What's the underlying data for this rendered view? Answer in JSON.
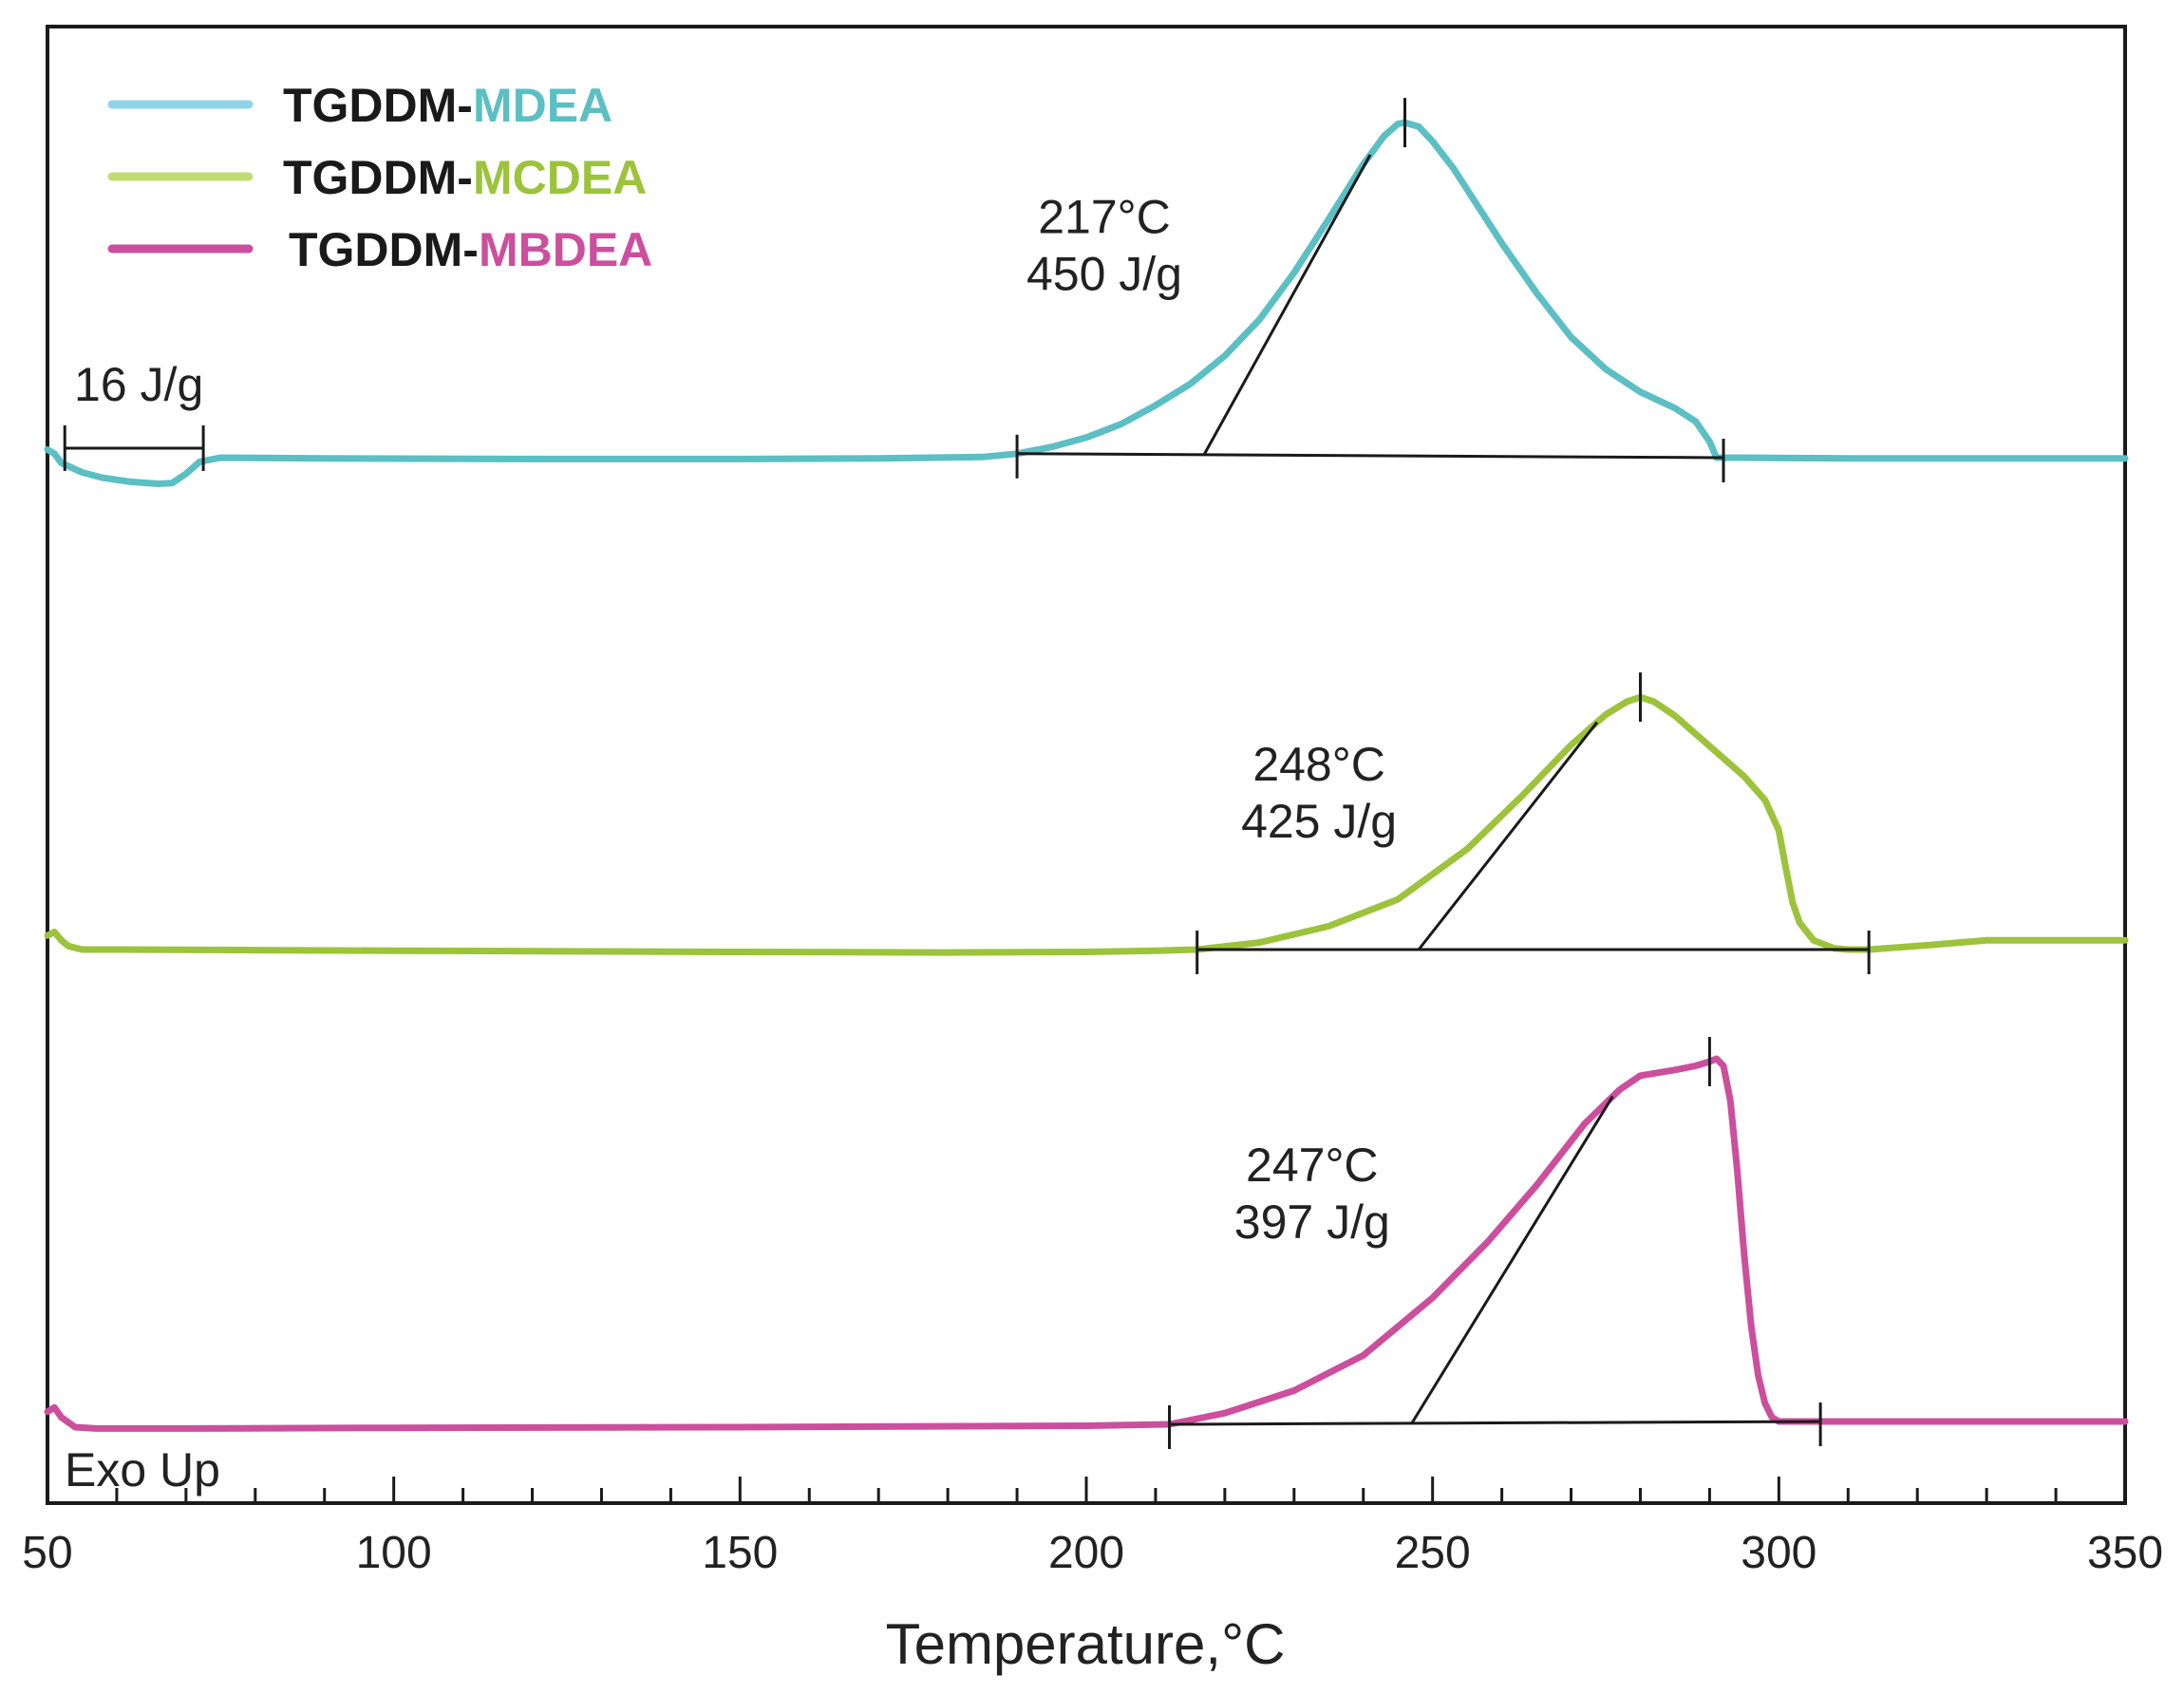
{
  "chart_data": {
    "type": "line",
    "xlabel": "Temperature,°C",
    "ylabel": "",
    "xlim": [
      50,
      350
    ],
    "x_ticks": [
      50,
      100,
      150,
      200,
      250,
      300,
      350
    ],
    "x_tick_labels": [
      "50",
      "100",
      "150",
      "200",
      "250",
      "300",
      "350"
    ],
    "grid": false,
    "legend_position": "top-left",
    "exo_label": "Exo Up",
    "series": [
      {
        "name": "TGDDM-MDEA",
        "legend_prefix": "TGDDM-",
        "legend_suffix": "MDEA",
        "color": "#5bbfc4",
        "legend_line_color": "#8fd3ea",
        "x": [
          50,
          51,
          52,
          55,
          58,
          62,
          66,
          68,
          70,
          72,
          75,
          90,
          120,
          150,
          170,
          185,
          190,
          195,
          200,
          205,
          210,
          215,
          220,
          225,
          230,
          235,
          240,
          243,
          245,
          246,
          248,
          250,
          253,
          256,
          260,
          265,
          270,
          275,
          280,
          285,
          288,
          290,
          291,
          295,
          310,
          330,
          350
        ],
        "y": [
          0.6,
          0.3,
          -0.4,
          -1.1,
          -1.5,
          -1.8,
          -1.95,
          -1.9,
          -1.2,
          -0.3,
          0.0,
          -0.05,
          -0.1,
          -0.1,
          -0.05,
          0.05,
          0.3,
          0.8,
          1.5,
          2.5,
          3.9,
          5.5,
          7.6,
          10.3,
          13.8,
          17.8,
          21.9,
          24.0,
          24.9,
          25.0,
          24.7,
          23.6,
          21.6,
          19.2,
          16.0,
          12.3,
          9.0,
          6.6,
          4.9,
          3.7,
          2.7,
          1.2,
          0.0,
          0.0,
          -0.05,
          -0.05,
          -0.05
        ],
        "y_range": [
          -2,
          26
        ],
        "onset_temp": 217,
        "peak_temp": 246,
        "integration_range": [
          190,
          292
        ],
        "annotation": [
          "217°C",
          "450 J/g"
        ],
        "endotherm_label": "16 J/g",
        "endotherm_range": [
          52.5,
          72.5
        ]
      },
      {
        "name": "TGDDM-MCDEA",
        "legend_prefix": "TGDDM-",
        "legend_suffix": "MCDEA",
        "color": "#9cc33b",
        "legend_line_color": "#c2dc74",
        "x": [
          50,
          51,
          52,
          53,
          55,
          60,
          80,
          100,
          150,
          180,
          200,
          210,
          216,
          225,
          235,
          245,
          255,
          263,
          270,
          275,
          278,
          280,
          282,
          285,
          290,
          295,
          298,
          300,
          301,
          302,
          303,
          305,
          308,
          310,
          313,
          320,
          330,
          350
        ],
        "y": [
          1.2,
          1.5,
          0.8,
          0.3,
          0.0,
          0.0,
          -0.05,
          -0.1,
          -0.2,
          -0.25,
          -0.2,
          -0.1,
          0.0,
          0.6,
          2.0,
          4.3,
          8.6,
          13.2,
          17.5,
          20.1,
          21.2,
          21.6,
          21.2,
          20.0,
          17.4,
          14.8,
          12.8,
          10.2,
          7.0,
          4.0,
          2.3,
          0.8,
          0.1,
          0.0,
          0.0,
          0.3,
          0.8,
          0.8
        ],
        "y_range": [
          -2,
          26
        ],
        "onset_temp": 248,
        "peak_temp": 280,
        "integration_range": [
          216,
          313
        ],
        "annotation": [
          "248°C",
          "425 J/g"
        ],
        "endotherm_label": "",
        "endotherm_range": []
      },
      {
        "name": "TGDDM-MBDEA",
        "legend_prefix": "TGDDM-",
        "legend_suffix": "MBDEA",
        "color": "#cc4f9d",
        "legend_line_color": "#cc4f9d",
        "x": [
          50,
          51,
          52,
          54,
          57,
          70,
          100,
          150,
          200,
          212,
          220,
          230,
          240,
          250,
          258,
          265,
          272,
          277,
          280,
          285,
          288,
          290,
          291,
          292,
          293,
          294,
          295,
          296,
          297,
          298,
          299,
          300,
          302,
          306,
          320,
          350
        ],
        "y": [
          0.9,
          1.2,
          0.5,
          -0.2,
          -0.3,
          -0.3,
          -0.25,
          -0.2,
          -0.1,
          0.0,
          0.8,
          2.4,
          4.9,
          9.0,
          13.0,
          17.0,
          21.4,
          23.8,
          24.8,
          25.2,
          25.5,
          25.8,
          26.0,
          25.5,
          23.0,
          18.0,
          12.0,
          7.0,
          3.5,
          1.5,
          0.5,
          0.2,
          0.2,
          0.2,
          0.2,
          0.2
        ],
        "y_range": [
          -2,
          26
        ],
        "onset_temp": 247,
        "peak_temp": 290,
        "integration_range": [
          212,
          306
        ],
        "annotation": [
          "247°C",
          "397 J/g"
        ],
        "endotherm_label": "",
        "endotherm_range": []
      }
    ]
  }
}
